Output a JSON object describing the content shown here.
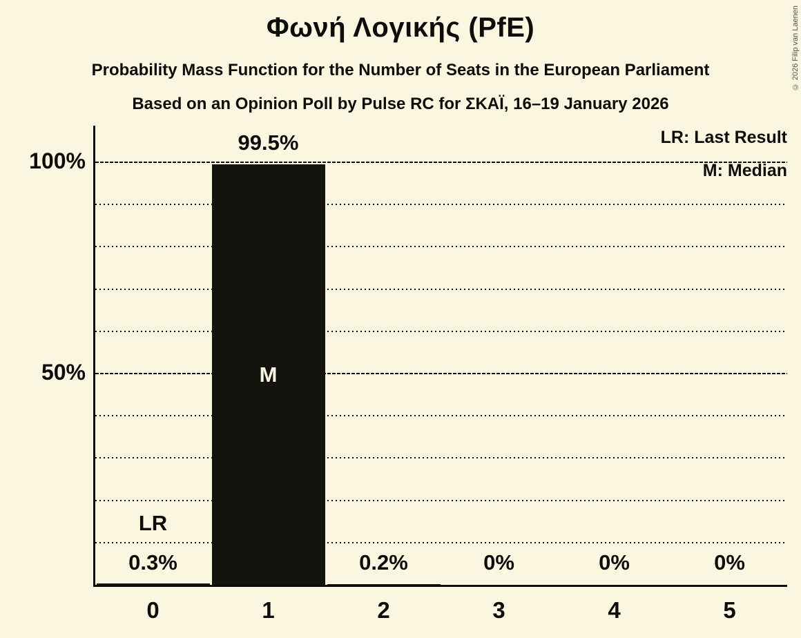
{
  "chart_data": {
    "type": "bar",
    "title": "Φωνή Λογικής (PfE)",
    "subtitle": "Probability Mass Function for the Number of Seats in the European Parliament",
    "source_line": "Based on an Opinion Poll by Pulse RC for ΣΚΑΪ, 16–19 January 2026",
    "copyright": "© 2026 Filip van Laenen",
    "categories": [
      "0",
      "1",
      "2",
      "3",
      "4",
      "5"
    ],
    "values": [
      0.3,
      99.5,
      0.2,
      0,
      0,
      0
    ],
    "value_labels": [
      "0.3%",
      "99.5%",
      "0.2%",
      "0%",
      "0%",
      "0%"
    ],
    "xlabel": "",
    "ylabel": "",
    "ylim": [
      0,
      100
    ],
    "ytick_positions": [
      50,
      100
    ],
    "ytick_labels": [
      "50%",
      "100%"
    ],
    "grid": "dotted minor gridlines every 10%, dense-dashed major gridlines at 50% and 100%",
    "legend_position": "top-right",
    "legend": [
      {
        "abbr": "LR",
        "label": "LR: Last Result"
      },
      {
        "abbr": "M",
        "label": "M: Median"
      }
    ],
    "annotations": {
      "last_result": {
        "category_index": 0,
        "text": "LR"
      },
      "median": {
        "category_index": 1,
        "text": "M"
      }
    },
    "colors": {
      "background": "#fbf6df",
      "bar": "#14140e",
      "text": "#0d0d0c"
    }
  }
}
